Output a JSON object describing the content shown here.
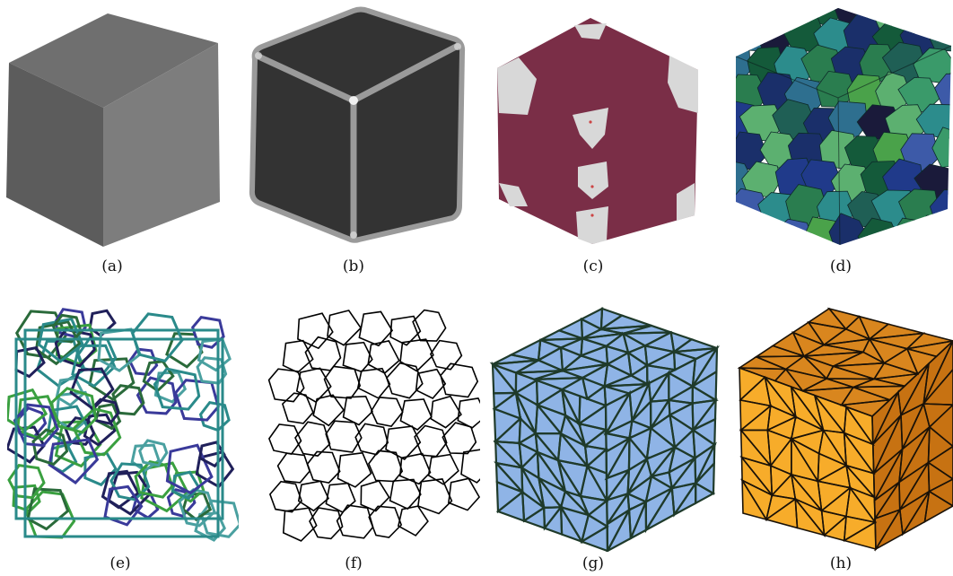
{
  "figure": {
    "panels": [
      {
        "id": "a",
        "label": "(a)"
      },
      {
        "id": "b",
        "label": "(b)"
      },
      {
        "id": "c",
        "label": "(c)"
      },
      {
        "id": "d",
        "label": "(d)"
      },
      {
        "id": "e",
        "label": "(e)"
      },
      {
        "id": "f",
        "label": "(f)"
      },
      {
        "id": "g",
        "label": "(g)"
      },
      {
        "id": "h",
        "label": "(h)"
      }
    ]
  },
  "colors": {
    "cube_gray_top": "#6f6f6f",
    "cube_gray_left": "#5c5c5c",
    "cube_gray_right": "#7d7d7d",
    "cube_dark": "#333333",
    "cube_dark_edge": "#9a9a9a",
    "maroon": "#7a2e47",
    "light_gray": "#d8d8d8",
    "grain_palette": [
      "#1f5f55",
      "#2a7d4f",
      "#203a8a",
      "#3a9a6a",
      "#2e6f8f",
      "#1a2f6a",
      "#4aa24a",
      "#145a3a",
      "#3d5aa8",
      "#2c8c8c",
      "#1a1a3a",
      "#5cb070"
    ],
    "blue_face": "#8fb4e6",
    "orange_left": "#f7ac2a",
    "orange_right": "#c77212",
    "orange_top": "#d9861e"
  }
}
